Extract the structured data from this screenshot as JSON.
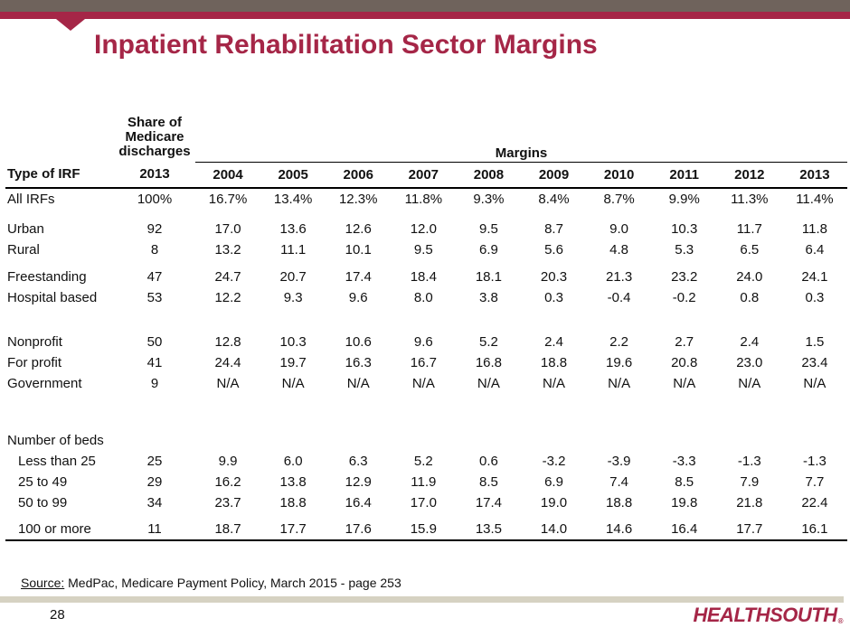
{
  "slide": {
    "title": "Inpatient Rehabilitation Sector Margins",
    "page_number": "28",
    "logo_text": "HEALTHSOUTH",
    "logo_reg_mark": "®"
  },
  "footer": {
    "source_label": "Source:",
    "source_rest": " MedPac, Medicare Payment Policy, March 2015 - page 253"
  },
  "colors": {
    "accent_crimson": "#a52647",
    "accent_brown": "#6f635c",
    "divider_tan": "#d6d2c2",
    "table_line_black": "#000000"
  },
  "table": {
    "share_header": "Share of Medicare discharges",
    "margins_header": "Margins",
    "columns": {
      "label": "Type of IRF",
      "share": "2013",
      "years": [
        "2004",
        "2005",
        "2006",
        "2007",
        "2008",
        "2009",
        "2010",
        "2011",
        "2012",
        "2013"
      ]
    },
    "rows": [
      {
        "type": "data",
        "label": "All IRFs",
        "share": "100%",
        "values": [
          "16.7%",
          "13.4%",
          "12.3%",
          "11.8%",
          "9.3%",
          "8.4%",
          "8.7%",
          "9.9%",
          "11.3%",
          "11.4%"
        ]
      },
      {
        "type": "spacer",
        "size": "sm"
      },
      {
        "type": "data",
        "label": "Urban",
        "share": "92",
        "values": [
          "17.0",
          "13.6",
          "12.6",
          "12.0",
          "9.5",
          "8.7",
          "9.0",
          "10.3",
          "11.7",
          "11.8"
        ]
      },
      {
        "type": "data",
        "label": "Rural",
        "share": "8",
        "values": [
          "13.2",
          "11.1",
          "10.1",
          "9.5",
          "6.9",
          "5.6",
          "4.8",
          "5.3",
          "6.5",
          "6.4"
        ]
      },
      {
        "type": "spacer",
        "size": "md"
      },
      {
        "type": "data",
        "label": "Freestanding",
        "share": "47",
        "values": [
          "24.7",
          "20.7",
          "17.4",
          "18.4",
          "18.1",
          "20.3",
          "21.3",
          "23.2",
          "24.0",
          "24.1"
        ]
      },
      {
        "type": "data",
        "label": "Hospital based",
        "share": "53",
        "values": [
          "12.2",
          "9.3",
          "9.6",
          "8.0",
          "3.8",
          "0.3",
          "-0.4",
          "-0.2",
          "0.8",
          "0.3"
        ]
      },
      {
        "type": "spacer",
        "size": "lg"
      },
      {
        "type": "data",
        "label": "Nonprofit",
        "share": "50",
        "values": [
          "12.8",
          "10.3",
          "10.6",
          "9.6",
          "5.2",
          "2.4",
          "2.2",
          "2.7",
          "2.4",
          "1.5"
        ]
      },
      {
        "type": "data",
        "label": "For profit",
        "share": "41",
        "values": [
          "24.4",
          "19.7",
          "16.3",
          "16.7",
          "16.8",
          "18.8",
          "19.6",
          "20.8",
          "23.0",
          "23.4"
        ]
      },
      {
        "type": "data",
        "label": "Government",
        "share": "9",
        "values": [
          "N/A",
          "N/A",
          "N/A",
          "N/A",
          "N/A",
          "N/A",
          "N/A",
          "N/A",
          "N/A",
          "N/A"
        ]
      },
      {
        "type": "spacer",
        "size": "xl"
      },
      {
        "type": "section",
        "label": "Number of beds"
      },
      {
        "type": "data",
        "label": "Less than 25",
        "indent": true,
        "share": "25",
        "values": [
          "9.9",
          "6.0",
          "6.3",
          "5.2",
          "0.6",
          "-3.2",
          "-3.9",
          "-3.3",
          "-1.3",
          "-1.3"
        ]
      },
      {
        "type": "data",
        "label": "25 to 49",
        "indent": true,
        "share": "29",
        "values": [
          "16.2",
          "13.8",
          "12.9",
          "11.9",
          "8.5",
          "6.9",
          "7.4",
          "8.5",
          "7.9",
          "7.7"
        ]
      },
      {
        "type": "data",
        "label": "50 to 99",
        "indent": true,
        "share": "34",
        "values": [
          "23.7",
          "18.8",
          "16.4",
          "17.0",
          "17.4",
          "19.0",
          "18.8",
          "19.8",
          "21.8",
          "22.4"
        ]
      },
      {
        "type": "spacer",
        "size": "xs"
      },
      {
        "type": "data",
        "label": "100 or more",
        "indent": true,
        "share": "11",
        "values": [
          "18.7",
          "17.7",
          "17.6",
          "15.9",
          "13.5",
          "14.0",
          "14.6",
          "16.4",
          "17.7",
          "16.1"
        ]
      }
    ]
  }
}
